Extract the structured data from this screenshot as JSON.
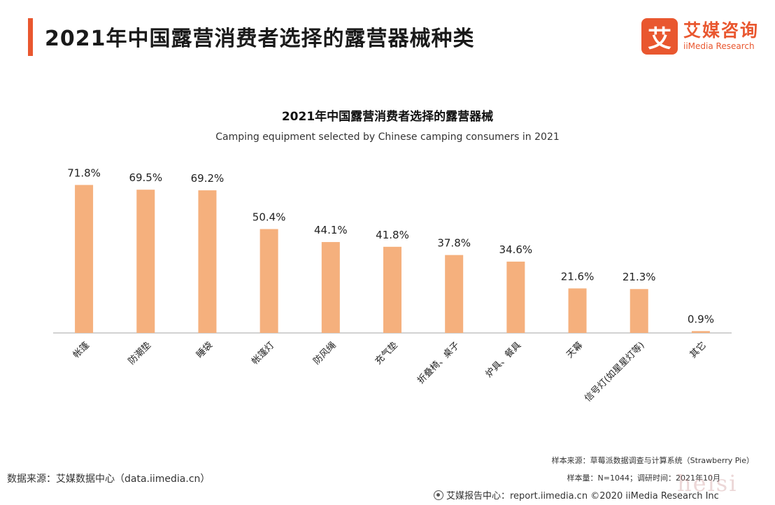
{
  "header": {
    "title": "2021年中国露营消费者选择的露营器械种类"
  },
  "logo": {
    "mark": "艾",
    "cn": "艾媒咨询",
    "en": "iiMedia Research"
  },
  "chart_data": {
    "type": "bar",
    "title": "2021年中国露营消费者选择的露营器械",
    "subtitle": "Camping equipment selected by Chinese camping consumers in 2021",
    "categories": [
      "帐篷",
      "防潮垫",
      "睡袋",
      "帐篷灯",
      "防风绳",
      "充气垫",
      "折叠椅、桌子",
      "炉具、餐具",
      "天幕",
      "信号灯(如星星灯等)",
      "其它"
    ],
    "values": [
      71.8,
      69.5,
      69.2,
      50.4,
      44.1,
      41.8,
      37.8,
      34.6,
      21.6,
      21.3,
      0.9
    ],
    "value_labels": [
      "71.8%",
      "69.5%",
      "69.2%",
      "50.4%",
      "44.1%",
      "41.8%",
      "37.8%",
      "34.6%",
      "21.6%",
      "21.3%",
      "0.9%"
    ],
    "unit": "%",
    "ylim": [
      0,
      75
    ],
    "grid": false,
    "bar_color": "#f5b07d"
  },
  "footer": {
    "data_source": "数据来源：艾媒数据中心（data.iimedia.cn）",
    "sample_source": "样本来源：草莓派数据调查与计算系统（Strawberry Pie）",
    "sample_size": "样本量：N=1044；调研时间：2021年10月",
    "report": "艾媒报告中心：report.iimedia.cn ©2020 iiMedia Research Inc"
  },
  "watermark": "heisi",
  "colors": {
    "accent": "#e9572f",
    "bar": "#f5b07d",
    "axis": "#b8b8b8"
  }
}
